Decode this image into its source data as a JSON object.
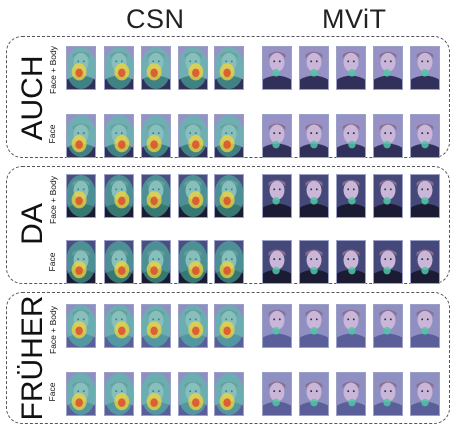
{
  "columns": {
    "left": "CSN",
    "right": "MViT"
  },
  "row_labels": {
    "top": "Face + Body",
    "bottom": "Face"
  },
  "panels": [
    {
      "word": "AUCH"
    },
    {
      "word": "DA"
    },
    {
      "word": "FRÜHER"
    }
  ],
  "colors": {
    "border": "#555555",
    "heat_hot": "#e0452a",
    "heat_warm": "#f2d43a",
    "heat_mid": "#4ec7a6",
    "frame_base": "#6f76c4"
  }
}
